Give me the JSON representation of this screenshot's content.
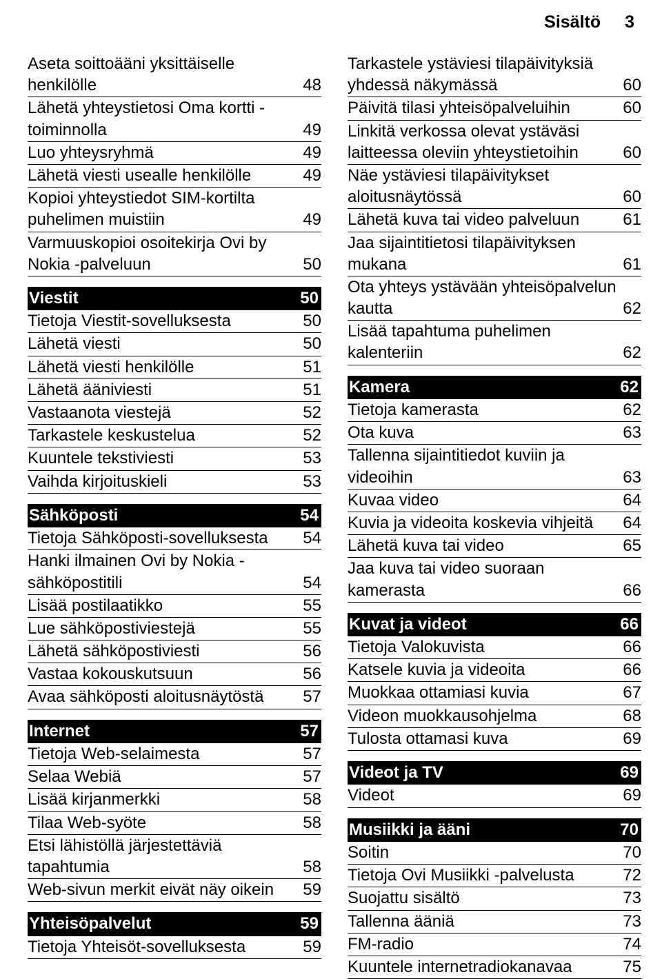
{
  "header": {
    "title": "Sisältö",
    "page": "3"
  },
  "leftColumn": [
    {
      "type": "row",
      "label": "Aseta soittoääni yksittäiselle henkilölle",
      "page": "48"
    },
    {
      "type": "row",
      "label": "Lähetä yhteystietosi Oma kortti -toiminnolla",
      "page": "49"
    },
    {
      "type": "row",
      "label": "Luo yhteysryhmä",
      "page": "49"
    },
    {
      "type": "row",
      "label": "Lähetä viesti usealle henkilölle",
      "page": "49"
    },
    {
      "type": "row",
      "label": "Kopioi yhteystiedot SIM-kortilta puhelimen muistiin",
      "page": "49"
    },
    {
      "type": "row",
      "label": "Varmuuskopioi osoitekirja Ovi by Nokia -palveluun",
      "page": "50"
    },
    {
      "type": "section",
      "label": "Viestit",
      "page": "50"
    },
    {
      "type": "row",
      "label": "Tietoja Viestit-sovelluksesta",
      "page": "50"
    },
    {
      "type": "row",
      "label": "Lähetä viesti",
      "page": "50"
    },
    {
      "type": "row",
      "label": "Lähetä viesti henkilölle",
      "page": "51"
    },
    {
      "type": "row",
      "label": "Lähetä ääniviesti",
      "page": "51"
    },
    {
      "type": "row",
      "label": "Vastaanota viestejä",
      "page": "52"
    },
    {
      "type": "row",
      "label": "Tarkastele keskustelua",
      "page": "52"
    },
    {
      "type": "row",
      "label": "Kuuntele tekstiviesti",
      "page": "53"
    },
    {
      "type": "row",
      "label": "Vaihda kirjoituskieli",
      "page": "53"
    },
    {
      "type": "section",
      "label": "Sähköposti",
      "page": "54"
    },
    {
      "type": "row",
      "label": "Tietoja Sähköposti-sovelluksesta",
      "page": "54"
    },
    {
      "type": "row",
      "label": "Hanki ilmainen Ovi by Nokia -sähköpostitili",
      "page": "54"
    },
    {
      "type": "row",
      "label": "Lisää postilaatikko",
      "page": "55"
    },
    {
      "type": "row",
      "label": "Lue sähköpostiviestejä",
      "page": "55"
    },
    {
      "type": "row",
      "label": "Lähetä sähköpostiviesti",
      "page": "56"
    },
    {
      "type": "row",
      "label": "Vastaa kokouskutsuun",
      "page": "56"
    },
    {
      "type": "row",
      "label": "Avaa sähköposti aloitusnäytöstä",
      "page": "57"
    },
    {
      "type": "section",
      "label": "Internet",
      "page": "57"
    },
    {
      "type": "row",
      "label": "Tietoja Web-selaimesta",
      "page": "57"
    },
    {
      "type": "row",
      "label": "Selaa Webiä",
      "page": "57"
    },
    {
      "type": "row",
      "label": "Lisää kirjanmerkki",
      "page": "58"
    },
    {
      "type": "row",
      "label": "Tilaa Web-syöte",
      "page": "58"
    },
    {
      "type": "row",
      "label": "Etsi lähistöllä järjestettäviä tapahtumia",
      "page": "58"
    },
    {
      "type": "row",
      "label": "Web-sivun merkit eivät näy oikein",
      "page": "59"
    },
    {
      "type": "section",
      "label": "Yhteisöpalvelut",
      "page": "59"
    },
    {
      "type": "row",
      "label": "Tietoja Yhteisöt-sovelluksesta",
      "page": "59"
    }
  ],
  "rightColumn": [
    {
      "type": "row",
      "label": "Tarkastele ystäviesi tilapäivityksiä yhdessä näkymässä",
      "page": "60"
    },
    {
      "type": "row",
      "label": "Päivitä tilasi yhteisöpalveluihin",
      "page": "60"
    },
    {
      "type": "row",
      "label": "Linkitä verkossa olevat ystäväsi laitteessa oleviin yhteystietoihin",
      "page": "60"
    },
    {
      "type": "row",
      "label": "Näe ystäviesi tilapäivitykset aloitusnäytössä",
      "page": "60"
    },
    {
      "type": "row",
      "label": "Lähetä kuva tai video palveluun",
      "page": "61"
    },
    {
      "type": "row",
      "label": "Jaa sijaintitietosi tilapäivityksen mukana",
      "page": "61"
    },
    {
      "type": "row",
      "label": "Ota yhteys ystävään yhteisöpalvelun kautta",
      "page": "62"
    },
    {
      "type": "row",
      "label": "Lisää tapahtuma puhelimen kalenteriin",
      "page": "62"
    },
    {
      "type": "section",
      "label": "Kamera",
      "page": "62"
    },
    {
      "type": "row",
      "label": "Tietoja kamerasta",
      "page": "62"
    },
    {
      "type": "row",
      "label": "Ota kuva",
      "page": "63"
    },
    {
      "type": "row",
      "label": "Tallenna sijaintitiedot kuviin ja videoihin",
      "page": "63"
    },
    {
      "type": "row",
      "label": "Kuvaa video",
      "page": "64"
    },
    {
      "type": "row",
      "label": "Kuvia ja videoita koskevia vihjeitä",
      "page": "64"
    },
    {
      "type": "row",
      "label": "Lähetä kuva tai video",
      "page": "65"
    },
    {
      "type": "row",
      "label": "Jaa kuva tai video suoraan kamerasta",
      "page": "66"
    },
    {
      "type": "section",
      "label": "Kuvat ja videot",
      "page": "66"
    },
    {
      "type": "row",
      "label": "Tietoja Valokuvista",
      "page": "66"
    },
    {
      "type": "row",
      "label": "Katsele kuvia ja videoita",
      "page": "66"
    },
    {
      "type": "row",
      "label": "Muokkaa ottamiasi kuvia",
      "page": "67"
    },
    {
      "type": "row",
      "label": "Videon muokkausohjelma",
      "page": "68"
    },
    {
      "type": "row",
      "label": "Tulosta ottamasi kuva",
      "page": "69"
    },
    {
      "type": "section",
      "label": "Videot ja TV",
      "page": "69"
    },
    {
      "type": "row",
      "label": "Videot",
      "page": "69"
    },
    {
      "type": "section",
      "label": "Musiikki ja ääni",
      "page": "70"
    },
    {
      "type": "row",
      "label": "Soitin",
      "page": "70"
    },
    {
      "type": "row",
      "label": "Tietoja Ovi Musiikki -palvelusta",
      "page": "72"
    },
    {
      "type": "row",
      "label": "Suojattu sisältö",
      "page": "73"
    },
    {
      "type": "row",
      "label": "Tallenna ääniä",
      "page": "73"
    },
    {
      "type": "row",
      "label": "FM-radio",
      "page": "74"
    },
    {
      "type": "row",
      "label": "Kuuntele internetradiokanavaa",
      "page": "75"
    }
  ],
  "firstRowNoTopMargin": true
}
